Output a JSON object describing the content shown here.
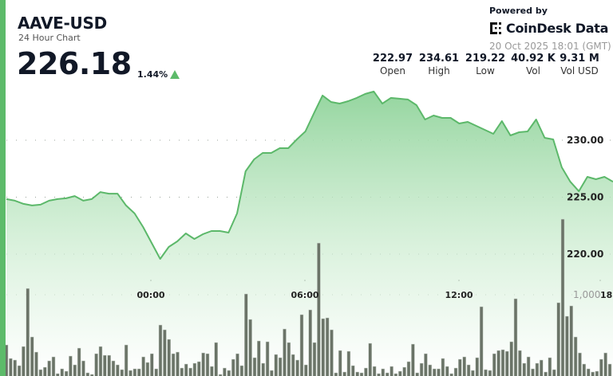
{
  "header": {
    "symbol": "AAVE-USD",
    "subtitle": "24 Hour Chart",
    "price": "226.18",
    "change": "1.44%",
    "change_direction": "up"
  },
  "branding": {
    "powered_by": "Powered by",
    "logo_text": "CoinDesk Data",
    "timestamp": "20 Oct 2025 18:01 (GMT)"
  },
  "stats": [
    {
      "value": "222.97",
      "label": "Open"
    },
    {
      "value": "234.61",
      "label": "High"
    },
    {
      "value": "219.22",
      "label": "Low"
    },
    {
      "value": "40.92 K",
      "label": "Vol"
    },
    {
      "value": "9.31 M",
      "label": "Vol USD"
    }
  ],
  "colors": {
    "accent": "#5dbb6a",
    "line": "#5cb86a",
    "volume_bar": "#6b7468",
    "up": "#5dbb6a"
  },
  "chart_data": {
    "type": "area",
    "price_axis": {
      "ticks": [
        230,
        225,
        220
      ],
      "tick_labels": [
        "230.00",
        "225.00",
        "220.00"
      ],
      "position": "right",
      "grid": true
    },
    "volume_axis": {
      "ticks": [
        1000
      ],
      "tick_labels": [
        "1,000"
      ]
    },
    "time_axis": {
      "tick_labels": [
        "00:00",
        "06:00",
        "12:00",
        "18"
      ]
    },
    "price_series": {
      "x": [
        "18:20",
        "18:40",
        "19:00",
        "19:20",
        "19:40",
        "20:00",
        "20:20",
        "20:40",
        "21:00",
        "21:20",
        "21:40",
        "22:00",
        "22:20",
        "22:40",
        "23:00",
        "23:20",
        "23:40",
        "00:00",
        "00:20",
        "00:40",
        "01:00",
        "01:20",
        "01:40",
        "02:00",
        "02:20",
        "02:40",
        "03:00",
        "03:20",
        "03:40",
        "04:00",
        "04:20",
        "04:40",
        "05:00",
        "05:20",
        "05:40",
        "06:00",
        "06:20",
        "06:40",
        "07:00",
        "07:20",
        "07:40",
        "08:00",
        "08:20",
        "08:40",
        "09:00",
        "09:20",
        "09:40",
        "10:00",
        "10:20",
        "10:40",
        "11:00",
        "11:20",
        "11:40",
        "12:00",
        "12:20",
        "12:40",
        "13:00",
        "13:20",
        "13:40",
        "14:00",
        "14:20",
        "14:40",
        "15:00",
        "15:20",
        "15:40",
        "16:00",
        "16:20",
        "16:40",
        "17:00",
        "17:20",
        "17:40",
        "18:00"
      ],
      "values": [
        224.83,
        224.69,
        224.41,
        224.27,
        224.34,
        224.69,
        224.83,
        224.9,
        225.1,
        224.69,
        224.83,
        225.45,
        225.31,
        225.31,
        224.27,
        223.57,
        222.38,
        220.98,
        219.58,
        220.63,
        221.12,
        221.82,
        221.33,
        221.75,
        222.03,
        222.03,
        221.89,
        223.57,
        227.27,
        228.32,
        228.88,
        228.88,
        229.3,
        229.3,
        230.07,
        230.77,
        232.38,
        233.92,
        233.36,
        233.22,
        233.43,
        233.71,
        234.06,
        234.27,
        233.22,
        233.71,
        233.64,
        233.57,
        233.08,
        231.82,
        232.17,
        231.96,
        231.96,
        231.47,
        231.61,
        231.26,
        230.91,
        230.56,
        231.68,
        230.42,
        230.7,
        230.77,
        231.82,
        230.21,
        230.07,
        227.62,
        226.36,
        225.52,
        226.78,
        226.57,
        226.78,
        226.36
      ]
    },
    "volume_series": {
      "values": [
        475,
        333,
        317,
        258,
        458,
        1066,
        558,
        400,
        217,
        242,
        308,
        350,
        175,
        225,
        200,
        358,
        267,
        442,
        308,
        183,
        167,
        383,
        458,
        367,
        367,
        308,
        267,
        217,
        475,
        208,
        225,
        225,
        350,
        292,
        383,
        225,
        683,
        633,
        533,
        383,
        400,
        233,
        275,
        233,
        283,
        300,
        392,
        383,
        250,
        500,
        167,
        233,
        208,
        325,
        383,
        258,
        1008,
        742,
        342,
        517,
        283,
        508,
        208,
        375,
        342,
        642,
        500,
        375,
        317,
        792,
        267,
        842,
        500,
        1541,
        750,
        758,
        633,
        183,
        417,
        192,
        408,
        258,
        192,
        183,
        233,
        492,
        250,
        175,
        225,
        183,
        250,
        175,
        200,
        242,
        300,
        483,
        183,
        283,
        383,
        267,
        225,
        225,
        333,
        250,
        175,
        233,
        325,
        350,
        267,
        208,
        342,
        875,
        217,
        208,
        383,
        417,
        425,
        408,
        508,
        958,
        417,
        283,
        350,
        225,
        283,
        317,
        192,
        342,
        217,
        917,
        1791,
        775,
        883,
        558,
        392,
        275,
        225,
        192,
        200,
        325,
        392,
        275
      ]
    }
  }
}
